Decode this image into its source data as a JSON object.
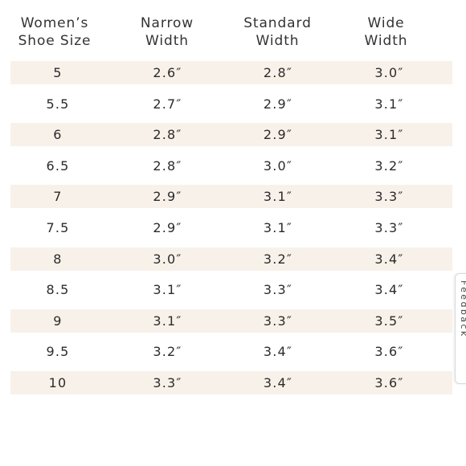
{
  "chart_data": {
    "type": "table",
    "columns": [
      "Women’s\nShoe Size",
      "Narrow\nWidth",
      "Standard\nWidth",
      "Wide\nWidth"
    ],
    "rows": [
      [
        "5",
        "2.6″",
        "2.8″",
        "3.0″"
      ],
      [
        "5.5",
        "2.7″",
        "2.9″",
        "3.1″"
      ],
      [
        "6",
        "2.8″",
        "2.9″",
        "3.1″"
      ],
      [
        "6.5",
        "2.8″",
        "3.0″",
        "3.2″"
      ],
      [
        "7",
        "2.9″",
        "3.1″",
        "3.3″"
      ],
      [
        "7.5",
        "2.9″",
        "3.1″",
        "3.3″"
      ],
      [
        "8",
        "3.0″",
        "3.2″",
        "3.4″"
      ],
      [
        "8.5",
        "3.1″",
        "3.3″",
        "3.4″"
      ],
      [
        "9",
        "3.1″",
        "3.3″",
        "3.5″"
      ],
      [
        "9.5",
        "3.2″",
        "3.4″",
        "3.6″"
      ],
      [
        "10",
        "3.3″",
        "3.4″",
        "3.6″"
      ]
    ],
    "row_shading": "alternating",
    "shade_color": "#f8f1ea"
  },
  "feedback_tab": {
    "label": "Feedback"
  }
}
